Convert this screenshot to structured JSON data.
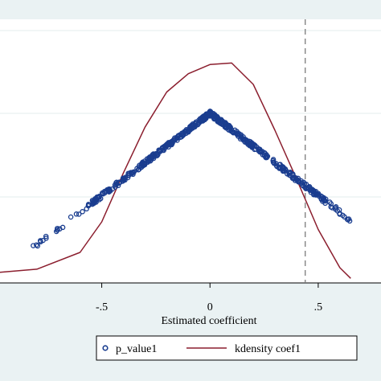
{
  "chart_data": {
    "type": "scatter",
    "xlabel": "Estimated coefficient",
    "xlim": [
      -0.97,
      0.79
    ],
    "x_ticks": [
      {
        "value": -0.5,
        "label": "-.5"
      },
      {
        "value": 0,
        "label": "0"
      },
      {
        "value": 0.5,
        "label": ".5"
      }
    ],
    "grid": true,
    "legend_position": "bottom",
    "reference_line": {
      "x": 0.44,
      "style": "dashed"
    },
    "series": [
      {
        "name": "p_value1",
        "type": "scatter",
        "marker": "hollow-circle",
        "color": "#1a3d8f",
        "shape": "p = 1 - |coef|",
        "x_min": -0.85,
        "x_max": 0.65,
        "y_scale": [
          0,
          1
        ]
      },
      {
        "name": "kdensity coef1",
        "type": "line",
        "color": "#8b1e2e",
        "x": [
          -0.97,
          -0.8,
          -0.6,
          -0.5,
          -0.4,
          -0.3,
          -0.2,
          -0.1,
          0,
          0.1,
          0.2,
          0.3,
          0.4,
          0.5,
          0.6,
          0.65
        ],
        "y": [
          0.07,
          0.09,
          0.2,
          0.4,
          0.72,
          1.02,
          1.25,
          1.37,
          1.43,
          1.44,
          1.3,
          1.0,
          0.68,
          0.35,
          0.1,
          0.03
        ]
      }
    ]
  }
}
